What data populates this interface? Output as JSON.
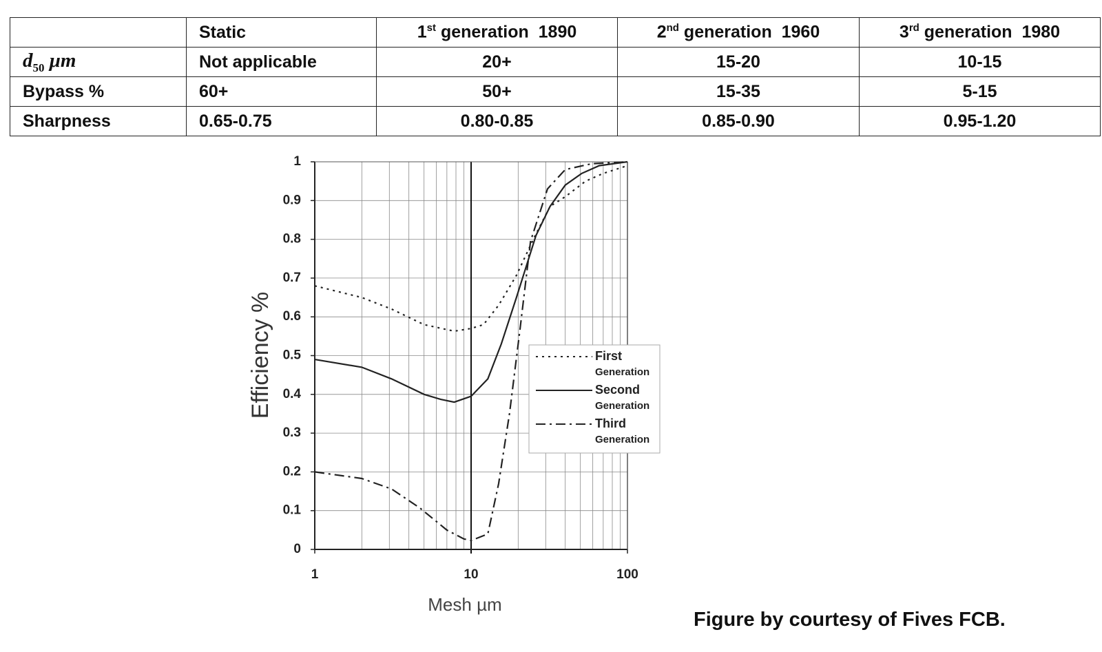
{
  "table": {
    "columns": [
      {
        "label": "Static"
      },
      {
        "ordinal": "1",
        "suffix": "st",
        "label": "generation",
        "year": "1890"
      },
      {
        "ordinal": "2",
        "suffix": "nd",
        "label": "generation",
        "year": "1960"
      },
      {
        "ordinal": "3",
        "suffix": "rd",
        "label": "generation",
        "year": "1980"
      }
    ],
    "rows": [
      {
        "label": {
          "symbol": "d",
          "subscript": "50",
          "unit": "μm"
        },
        "cells": [
          "Not applicable",
          "20+",
          "15-20",
          "10-15"
        ]
      },
      {
        "label": {
          "text": "Bypass %"
        },
        "cells": [
          "60+",
          "50+",
          "15-35",
          "5-15"
        ]
      },
      {
        "label": {
          "text": "Sharpness"
        },
        "cells": [
          "0.65-0.75",
          "0.80-0.85",
          "0.85-0.90",
          "0.95-1.20"
        ]
      }
    ]
  },
  "chart_data": {
    "type": "line",
    "x_label": "Mesh µm",
    "y_label": "Efficiency %",
    "xscale": "log",
    "xlim": [
      1,
      100
    ],
    "xticks": [
      1,
      10,
      100
    ],
    "ylim": [
      0,
      1
    ],
    "yticks": [
      0,
      0.1,
      0.2,
      0.3,
      0.4,
      0.5,
      0.6,
      0.7,
      0.8,
      0.9,
      1
    ],
    "grid": true,
    "legend": "right",
    "series": [
      {
        "name": "First Generation",
        "color": "#222222",
        "dash": "dotted",
        "x": [
          1,
          2,
          3.1,
          5,
          7.8,
          10,
          12,
          15,
          19.5,
          25,
          32,
          40,
          54,
          70,
          100
        ],
        "values": [
          0.68,
          0.65,
          0.62,
          0.58,
          0.563,
          0.57,
          0.58,
          0.63,
          0.707,
          0.8,
          0.885,
          0.91,
          0.95,
          0.97,
          0.99
        ]
      },
      {
        "name": "Second Generation",
        "color": "#222222",
        "dash": "solid",
        "x": [
          1,
          2,
          3.1,
          5,
          6.4,
          7.8,
          10,
          12.8,
          15.6,
          19.5,
          26,
          32,
          40,
          51,
          66,
          100
        ],
        "values": [
          0.49,
          0.47,
          0.44,
          0.4,
          0.387,
          0.38,
          0.395,
          0.44,
          0.53,
          0.65,
          0.81,
          0.885,
          0.94,
          0.97,
          0.99,
          1
        ]
      },
      {
        "name": "Third Generation",
        "color": "#222222",
        "dash": "dashdot",
        "x": [
          1,
          2,
          3.1,
          4.7,
          7,
          9,
          10,
          12.8,
          15,
          17.6,
          20.5,
          24,
          30.8,
          40,
          59,
          100
        ],
        "values": [
          0.2,
          0.183,
          0.156,
          0.107,
          0.05,
          0.027,
          0.023,
          0.04,
          0.17,
          0.35,
          0.565,
          0.795,
          0.93,
          0.98,
          0.995,
          1
        ]
      }
    ]
  },
  "credit": "Figure by courtesy of Fives FCB."
}
